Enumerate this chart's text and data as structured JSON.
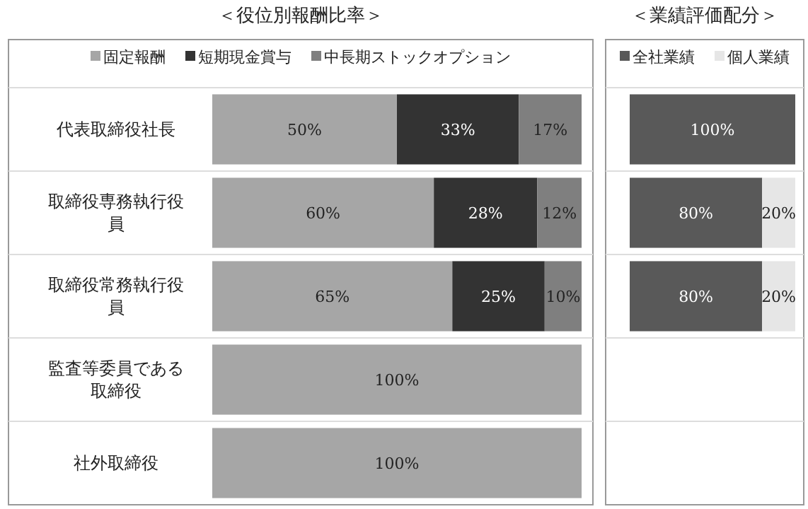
{
  "chart_data": [
    {
      "type": "bar",
      "orientation": "horizontal",
      "stacked": true,
      "title": "＜役位別報酬比率＞",
      "categories": [
        "代表取締役社長",
        "取締役専務執行役員",
        "取締役常務執行役員",
        "監査等委員である取締役",
        "社外取締役"
      ],
      "xlim": [
        0,
        100
      ],
      "legend": "top",
      "grid": "y",
      "series": [
        {
          "name": "固定報酬",
          "color": "#a6a6a6",
          "values": [
            50,
            60,
            65,
            100,
            100
          ],
          "value_labels": [
            "50%",
            "60%",
            "65%",
            "100%",
            "100%"
          ]
        },
        {
          "name": "短期現金賞与",
          "color": "#333333",
          "values": [
            33,
            28,
            25,
            null,
            null
          ],
          "value_labels": [
            "33%",
            "28%",
            "25%",
            null,
            null
          ]
        },
        {
          "name": "中長期ストックオプション",
          "color": "#7f7f7f",
          "values": [
            17,
            12,
            10,
            null,
            null
          ],
          "value_labels": [
            "17%",
            "12%",
            "10%",
            null,
            null
          ]
        }
      ]
    },
    {
      "type": "bar",
      "orientation": "horizontal",
      "stacked": true,
      "title": "＜業績評価配分＞",
      "categories": [
        null,
        null,
        null,
        null,
        null
      ],
      "xlim": [
        0,
        100
      ],
      "legend": "top",
      "grid": "y",
      "series": [
        {
          "name": "全社業績",
          "color": "#595959",
          "values": [
            100,
            80,
            80,
            null,
            null
          ],
          "value_labels": [
            "100%",
            "80%",
            "80%",
            null,
            null
          ]
        },
        {
          "name": "個人業績",
          "color": "#e6e6e6",
          "values": [
            null,
            20,
            20,
            null,
            null
          ],
          "value_labels": [
            null,
            "20%",
            "20%",
            null,
            null
          ]
        }
      ]
    }
  ]
}
